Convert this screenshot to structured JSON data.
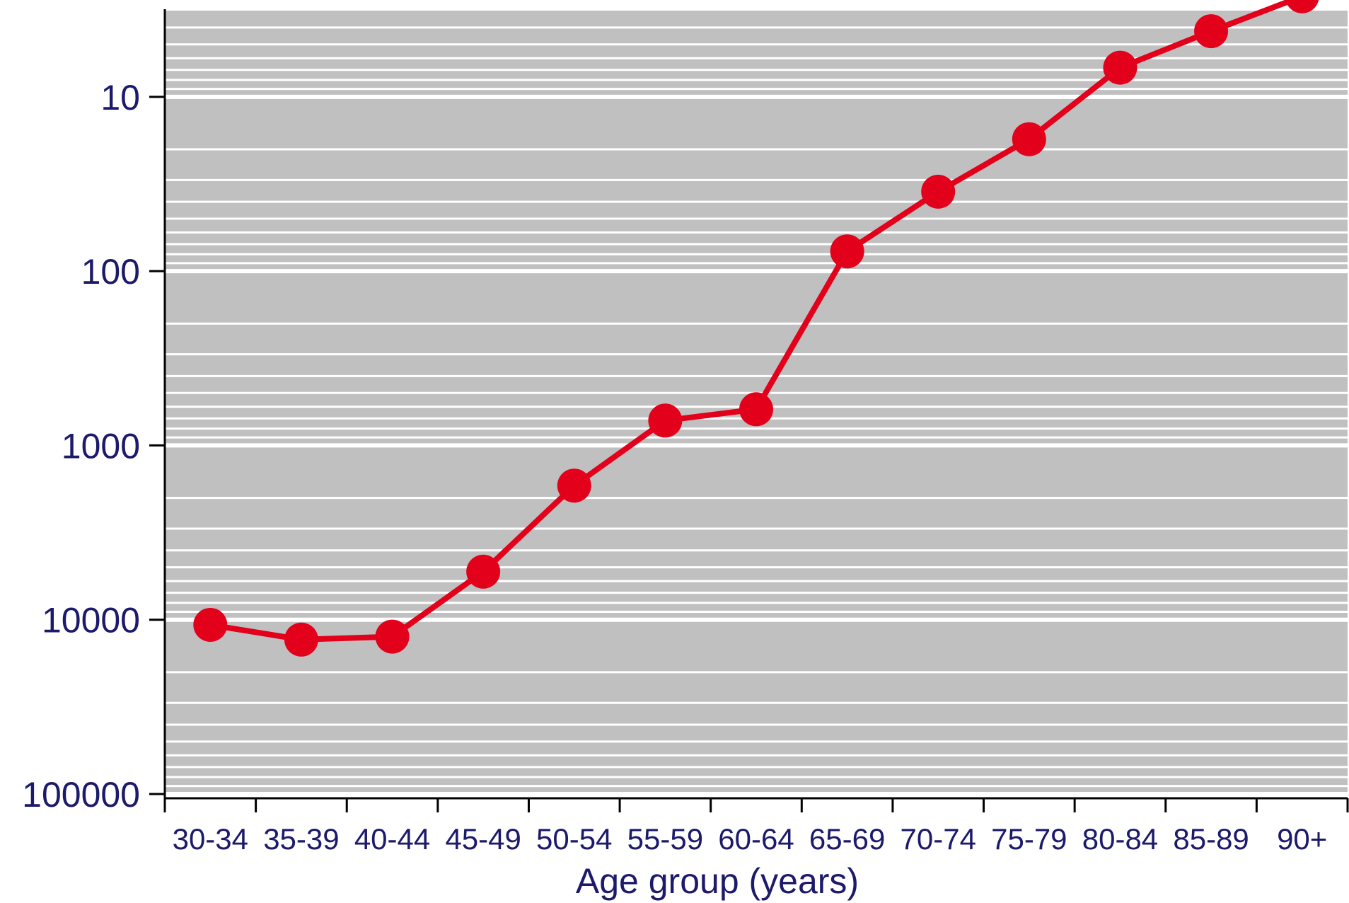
{
  "chart_data": {
    "type": "line",
    "title": "",
    "xlabel": "Age group (years)",
    "ylabel": "",
    "y_scale": "log",
    "y_inverted": true,
    "ylim": [
      3.2,
      100000
    ],
    "grid": true,
    "legend": "none",
    "categories": [
      "30-34",
      "35-39",
      "40-44",
      "45-49",
      "50-54",
      "55-59",
      "60-64",
      "65-69",
      "70-74",
      "75-79",
      "80-84",
      "85-89",
      "90+"
    ],
    "y_ticks": [
      10,
      100,
      1000,
      10000,
      100000
    ],
    "y_tick_labels": [
      "10",
      "100",
      "1000",
      "10000",
      "100000"
    ],
    "series": [
      {
        "values": [
          10700,
          13000,
          12500,
          5300,
          1700,
          720,
          620,
          77,
          35,
          17.5,
          6.8,
          4.2,
          2.65
        ],
        "color": "#e3001b"
      }
    ],
    "colors": {
      "plot_background": "#c0c0c0",
      "grid_line": "#ffffff",
      "axis": "#000000",
      "text": "#1c1a6b",
      "line": "#e3001b"
    }
  }
}
